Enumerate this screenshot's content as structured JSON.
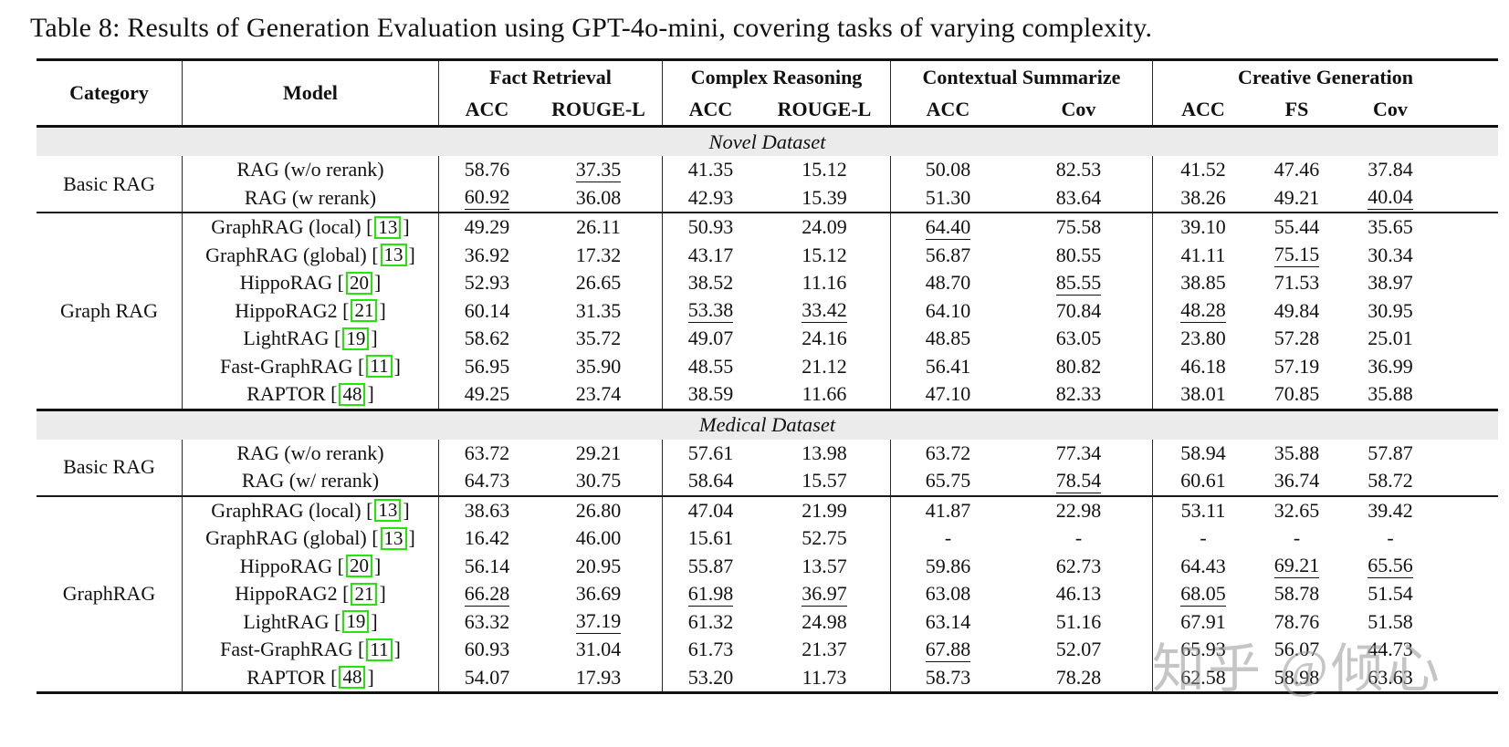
{
  "page": {
    "title": "Table 8: Results of Generation Evaluation using GPT-4o-mini, covering tasks of varying complexity."
  },
  "watermark": "知乎 @倾心",
  "colors": {
    "citation_box_green": "#25e40c",
    "band_background": "#ebebeb",
    "rule_color": "#111111"
  },
  "table": {
    "header": {
      "category": "Category",
      "model": "Model",
      "groups": [
        {
          "label": "Fact Retrieval",
          "subs": [
            "ACC",
            "ROUGE-L"
          ]
        },
        {
          "label": "Complex Reasoning",
          "subs": [
            "ACC",
            "ROUGE-L"
          ]
        },
        {
          "label": "Contextual Summarize",
          "subs": [
            "ACC",
            "Cov"
          ]
        },
        {
          "label": "Creative Generation",
          "subs": [
            "ACC",
            "FS",
            "Cov"
          ]
        }
      ]
    },
    "sections": [
      {
        "band": "Novel Dataset"
      },
      {
        "category": "Basic RAG",
        "rows": [
          {
            "model": "RAG (w/o rerank)",
            "values": [
              "58.76",
              "37.35",
              "41.35",
              "15.12",
              "50.08",
              "82.53",
              "41.52",
              "47.46",
              "37.84"
            ],
            "underline": [
              1
            ]
          },
          {
            "model": "RAG (w rerank)",
            "values": [
              "60.92",
              "36.08",
              "42.93",
              "15.39",
              "51.30",
              "83.64",
              "38.26",
              "49.21",
              "40.04"
            ],
            "underline": [
              0,
              8
            ]
          }
        ]
      },
      {
        "category": "Graph RAG",
        "rows": [
          {
            "model": "GraphRAG (local)",
            "cite": "13",
            "values": [
              "49.29",
              "26.11",
              "50.93",
              "24.09",
              "64.40",
              "75.58",
              "39.10",
              "55.44",
              "35.65"
            ],
            "underline": [
              4
            ]
          },
          {
            "model": "GraphRAG (global)",
            "cite": "13",
            "values": [
              "36.92",
              "17.32",
              "43.17",
              "15.12",
              "56.87",
              "80.55",
              "41.11",
              "75.15",
              "30.34"
            ],
            "underline": [
              7
            ]
          },
          {
            "model": "HippoRAG",
            "cite": "20",
            "values": [
              "52.93",
              "26.65",
              "38.52",
              "11.16",
              "48.70",
              "85.55",
              "38.85",
              "71.53",
              "38.97"
            ],
            "underline": [
              5
            ]
          },
          {
            "model": "HippoRAG2",
            "cite": "21",
            "values": [
              "60.14",
              "31.35",
              "53.38",
              "33.42",
              "64.10",
              "70.84",
              "48.28",
              "49.84",
              "30.95"
            ],
            "underline": [
              2,
              3,
              6
            ]
          },
          {
            "model": "LightRAG",
            "cite": "19",
            "values": [
              "58.62",
              "35.72",
              "49.07",
              "24.16",
              "48.85",
              "63.05",
              "23.80",
              "57.28",
              "25.01"
            ],
            "underline": []
          },
          {
            "model": "Fast-GraphRAG",
            "cite": "11",
            "values": [
              "56.95",
              "35.90",
              "48.55",
              "21.12",
              "56.41",
              "80.82",
              "46.18",
              "57.19",
              "36.99"
            ],
            "underline": []
          },
          {
            "model": "RAPTOR",
            "cite": "48",
            "values": [
              "49.25",
              "23.74",
              "38.59",
              "11.66",
              "47.10",
              "82.33",
              "38.01",
              "70.85",
              "35.88"
            ],
            "underline": []
          }
        ]
      },
      {
        "band": "Medical Dataset"
      },
      {
        "category": "Basic RAG",
        "rows": [
          {
            "model": "RAG (w/o rerank)",
            "values": [
              "63.72",
              "29.21",
              "57.61",
              "13.98",
              "63.72",
              "77.34",
              "58.94",
              "35.88",
              "57.87"
            ],
            "underline": []
          },
          {
            "model": "RAG (w/ rerank)",
            "values": [
              "64.73",
              "30.75",
              "58.64",
              "15.57",
              "65.75",
              "78.54",
              "60.61",
              "36.74",
              "58.72"
            ],
            "underline": [
              5
            ]
          }
        ]
      },
      {
        "category": "GraphRAG",
        "rows": [
          {
            "model": "GraphRAG (local)",
            "cite": "13",
            "values": [
              "38.63",
              "26.80",
              "47.04",
              "21.99",
              "41.87",
              "22.98",
              "53.11",
              "32.65",
              "39.42"
            ],
            "underline": []
          },
          {
            "model": "GraphRAG (global)",
            "cite": "13",
            "values": [
              "16.42",
              "46.00",
              "15.61",
              "52.75",
              "-",
              "-",
              "-",
              "-",
              "-"
            ],
            "underline": []
          },
          {
            "model": "HippoRAG",
            "cite": "20",
            "values": [
              "56.14",
              "20.95",
              "55.87",
              "13.57",
              "59.86",
              "62.73",
              "64.43",
              "69.21",
              "65.56"
            ],
            "underline": [
              7,
              8
            ]
          },
          {
            "model": "HippoRAG2",
            "cite": "21",
            "values": [
              "66.28",
              "36.69",
              "61.98",
              "36.97",
              "63.08",
              "46.13",
              "68.05",
              "58.78",
              "51.54"
            ],
            "underline": [
              0,
              2,
              3,
              6
            ]
          },
          {
            "model": "LightRAG",
            "cite": "19",
            "values": [
              "63.32",
              "37.19",
              "61.32",
              "24.98",
              "63.14",
              "51.16",
              "67.91",
              "78.76",
              "51.58"
            ],
            "underline": [
              1
            ]
          },
          {
            "model": "Fast-GraphRAG",
            "cite": "11",
            "values": [
              "60.93",
              "31.04",
              "61.73",
              "21.37",
              "67.88",
              "52.07",
              "65.93",
              "56.07",
              "44.73"
            ],
            "underline": [
              4
            ]
          },
          {
            "model": "RAPTOR",
            "cite": "48",
            "values": [
              "54.07",
              "17.93",
              "53.20",
              "11.73",
              "58.73",
              "78.28",
              "62.58",
              "58.98",
              "63.63"
            ],
            "underline": []
          }
        ]
      }
    ]
  }
}
